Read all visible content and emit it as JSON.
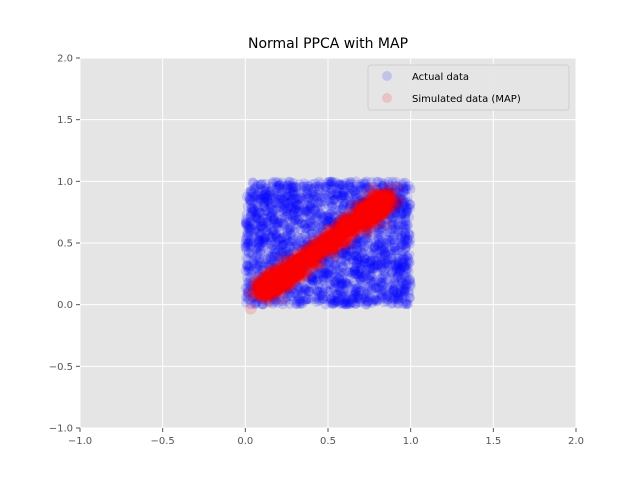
{
  "chart_data": {
    "type": "scatter",
    "title": "Normal PPCA with MAP",
    "xlabel": "",
    "ylabel": "",
    "xlim": [
      -1.0,
      2.0
    ],
    "ylim": [
      -1.0,
      2.0
    ],
    "xticks": [
      "−1.0",
      "−0.5",
      "0.0",
      "0.5",
      "1.0",
      "1.5",
      "2.0"
    ],
    "yticks": [
      "−1.0",
      "−0.5",
      "0.0",
      "0.5",
      "1.0",
      "1.5",
      "2.0"
    ],
    "xtick_values": [
      -1.0,
      -0.5,
      0.0,
      0.5,
      1.0,
      1.5,
      2.0
    ],
    "ytick_values": [
      -1.0,
      -0.5,
      0.0,
      0.5,
      1.0,
      1.5,
      2.0
    ],
    "grid": true,
    "legend_position": "upper-right",
    "series": [
      {
        "name": "Actual data",
        "color": "#0000ff",
        "distribution": "uniform over [0,1] x [0,1]",
        "x_range": [
          0.0,
          1.0
        ],
        "y_range": [
          0.0,
          1.0
        ]
      },
      {
        "name": "Simulated data (MAP)",
        "color": "#ff0000",
        "distribution": "band along the diagonal y ≈ x",
        "x_range": [
          0.1,
          0.85
        ],
        "y_range": [
          0.1,
          0.85
        ]
      }
    ]
  }
}
